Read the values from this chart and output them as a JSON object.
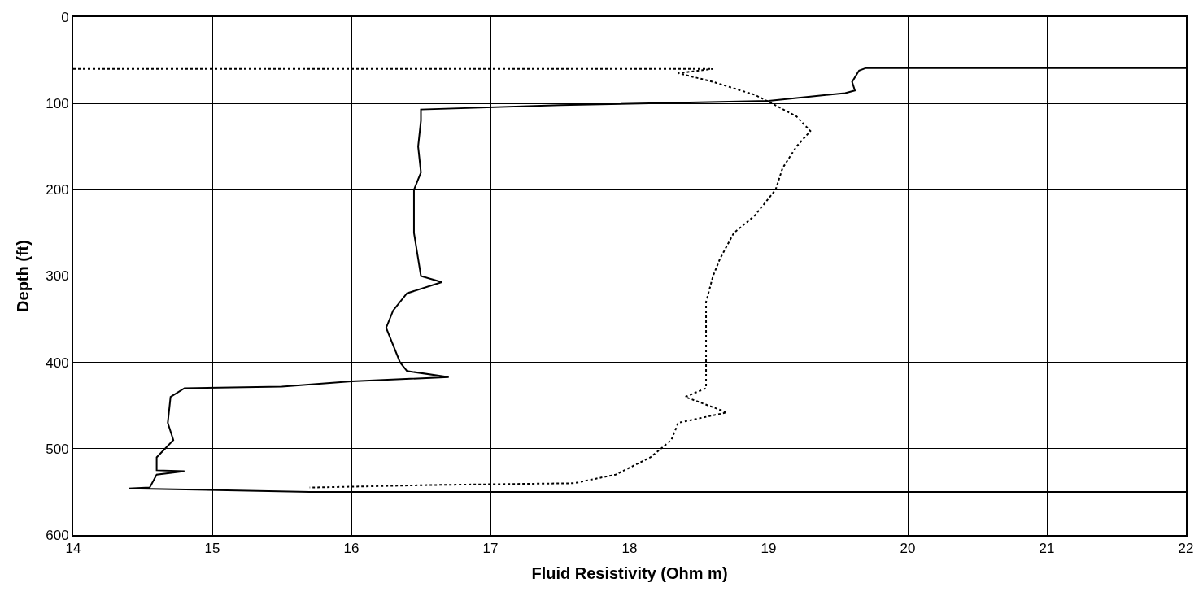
{
  "chart_data": {
    "type": "line",
    "xlabel": "Fluid Resistivity (Ohm m)",
    "ylabel": "Depth (ft)",
    "xlim": [
      14,
      22
    ],
    "xticks": [
      14,
      15,
      16,
      17,
      18,
      19,
      20,
      21,
      22
    ],
    "ylim": [
      600,
      0
    ],
    "yticks": [
      0,
      100,
      200,
      300,
      400,
      500,
      600
    ],
    "grid": true,
    "marker": "none",
    "series": [
      {
        "color": "#000000",
        "line_style": "solid",
        "x": [
          22,
          19.7,
          19.65,
          19.6,
          19.62,
          19.55,
          19.3,
          19.0,
          17.5,
          16.5,
          16.5,
          16.48,
          16.5,
          16.45,
          16.45,
          16.5,
          16.65,
          16.4,
          16.3,
          16.25,
          16.3,
          16.35,
          16.4,
          16.7,
          16.0,
          15.5,
          14.8,
          14.7,
          14.68,
          14.72,
          14.6,
          14.6,
          14.8,
          14.6,
          14.55,
          14.4,
          15.7,
          22
        ],
        "values": [
          59,
          59,
          62,
          75,
          85,
          88,
          92,
          97,
          102,
          107,
          120,
          150,
          180,
          200,
          250,
          300,
          307,
          320,
          340,
          360,
          380,
          400,
          410,
          417,
          422,
          428,
          430,
          440,
          470,
          490,
          510,
          525,
          526,
          530,
          545,
          546,
          550,
          550
        ]
      },
      {
        "color": "#000000",
        "line_style": "dotted",
        "x": [
          14,
          18.6,
          18.35,
          18.6,
          18.9,
          19.0,
          19.2,
          19.3,
          19.2,
          19.1,
          19.05,
          18.9,
          18.75,
          18.65,
          18.6,
          18.55,
          18.55,
          18.55,
          18.4,
          18.7,
          18.35,
          18.3,
          18.15,
          17.9,
          17.6,
          16.6,
          15.7
        ],
        "values": [
          60,
          60,
          65,
          75,
          90,
          98,
          115,
          132,
          150,
          175,
          200,
          230,
          250,
          280,
          300,
          330,
          380,
          430,
          440,
          458,
          470,
          490,
          510,
          530,
          540,
          542,
          545
        ]
      }
    ]
  }
}
